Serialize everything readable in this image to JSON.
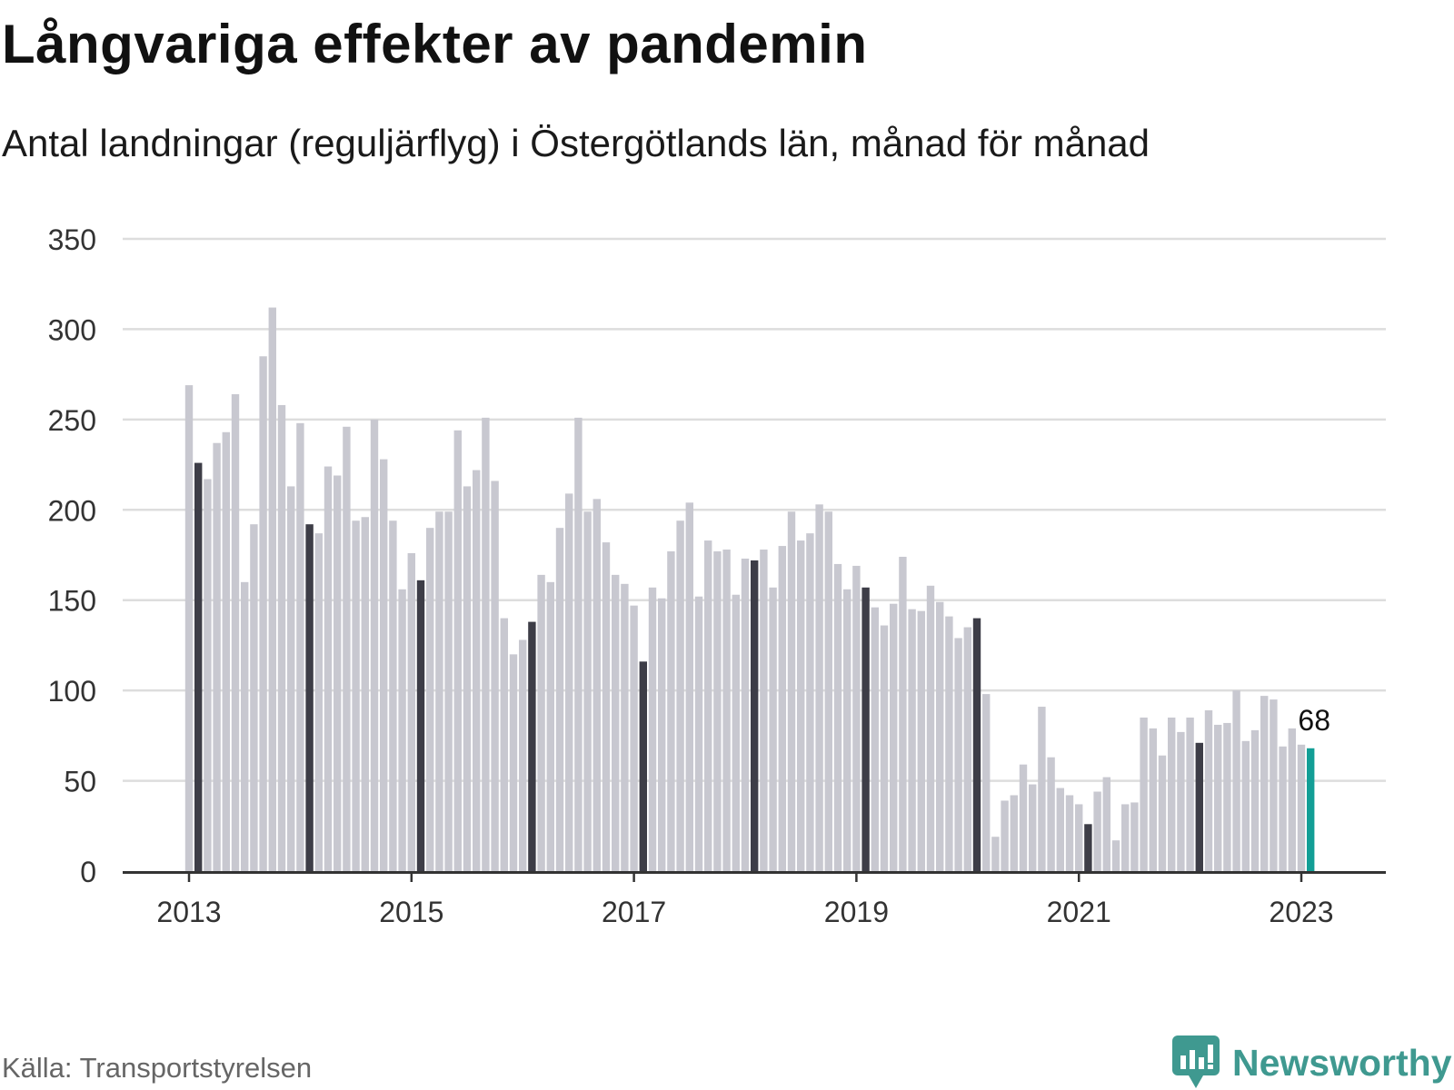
{
  "header": {
    "title": "Långvariga effekter av pandemin",
    "subtitle": "Antal landningar (reguljärflyg) i Östergötlands län, månad för månad"
  },
  "footer": {
    "source": "Källa: Transportstyrelsen",
    "brand": "Newsworthy"
  },
  "colors": {
    "bar": "#c8c8d0",
    "january_bar": "#3d3d47",
    "latest_bar": "#139e96",
    "grid": "#dddddd",
    "axis": "#333333",
    "brand": "#3f9990"
  },
  "chart_data": {
    "type": "bar",
    "x_start": "2013-01",
    "x_ticks": [
      "2013",
      "2015",
      "2017",
      "2019",
      "2021",
      "2023"
    ],
    "y_ticks": [
      0,
      50,
      100,
      150,
      200,
      250,
      300,
      350
    ],
    "ylim": [
      0,
      350
    ],
    "grid": true,
    "highlight": "january bars dark; latest month teal",
    "last_value_label": "68",
    "values": [
      269,
      226,
      217,
      237,
      243,
      264,
      160,
      192,
      285,
      312,
      258,
      213,
      248,
      192,
      187,
      224,
      219,
      246,
      194,
      196,
      250,
      228,
      194,
      156,
      176,
      161,
      190,
      199,
      199,
      244,
      213,
      222,
      251,
      216,
      140,
      120,
      128,
      138,
      164,
      160,
      190,
      209,
      251,
      199,
      206,
      182,
      164,
      159,
      147,
      116,
      157,
      151,
      177,
      194,
      204,
      152,
      183,
      177,
      178,
      153,
      173,
      172,
      178,
      157,
      180,
      199,
      183,
      187,
      203,
      199,
      170,
      156,
      169,
      157,
      146,
      136,
      148,
      174,
      145,
      144,
      158,
      149,
      141,
      129,
      135,
      140,
      98,
      19,
      39,
      42,
      59,
      48,
      91,
      63,
      46,
      42,
      37,
      26,
      44,
      52,
      17,
      37,
      38,
      85,
      79,
      64,
      85,
      77,
      85,
      71,
      89,
      81,
      82,
      100,
      72,
      78,
      97,
      95,
      69,
      79,
      70,
      68
    ]
  }
}
